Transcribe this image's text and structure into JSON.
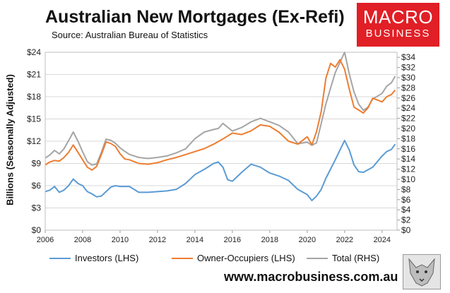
{
  "header": {
    "title": "Australian New Mortgages (Ex-Refi)",
    "subtitle": "Source: Australian Bureau of Statistics"
  },
  "logo": {
    "line1": "MACRO",
    "line2": "BUSINESS"
  },
  "footer": {
    "website": "www.macrobusiness.com.au"
  },
  "colors": {
    "investors": "#5b9bd5",
    "owner_occupiers": "#ed7d31",
    "total": "#a5a5a5",
    "logo_bg": "#e11f26"
  },
  "chart_data": {
    "type": "line",
    "xlabel": "",
    "ylabel": "Billions (Seasonally Adjusted)",
    "xlim": [
      2006,
      2024.8
    ],
    "x_ticks": [
      "2006",
      "2008",
      "2010",
      "2012",
      "2014",
      "2016",
      "2018",
      "2020",
      "2022",
      "2024"
    ],
    "y_left": {
      "lim": [
        0,
        24
      ],
      "ticks": [
        "$0",
        "$3",
        "$6",
        "$9",
        "$12",
        "$15",
        "$18",
        "$21",
        "$24"
      ]
    },
    "y_right": {
      "lim": [
        0,
        35
      ],
      "ticks": [
        "$0",
        "$2",
        "$4",
        "$6",
        "$8",
        "$10",
        "$12",
        "$14",
        "$16",
        "$18",
        "$20",
        "$22",
        "$24",
        "$26",
        "$28",
        "$30",
        "$32",
        "$34"
      ]
    },
    "grid": true,
    "legend_position": "bottom",
    "series": [
      {
        "name": "Investors (LHS)",
        "axis": "left",
        "x": [
          2006.0,
          2006.25,
          2006.5,
          2006.75,
          2007.0,
          2007.25,
          2007.5,
          2007.75,
          2008.0,
          2008.25,
          2008.5,
          2008.75,
          2009.0,
          2009.25,
          2009.5,
          2009.75,
          2010.0,
          2010.5,
          2011.0,
          2011.5,
          2012.0,
          2012.5,
          2013.0,
          2013.5,
          2014.0,
          2014.5,
          2015.0,
          2015.25,
          2015.5,
          2015.75,
          2016.0,
          2016.5,
          2017.0,
          2017.5,
          2018.0,
          2018.5,
          2019.0,
          2019.5,
          2020.0,
          2020.25,
          2020.5,
          2020.75,
          2021.0,
          2021.5,
          2022.0,
          2022.25,
          2022.5,
          2022.75,
          2023.0,
          2023.5,
          2024.0,
          2024.25,
          2024.5,
          2024.7
        ],
        "values": [
          5.2,
          5.4,
          5.9,
          5.1,
          5.4,
          6.0,
          6.9,
          6.3,
          6.0,
          5.2,
          4.9,
          4.5,
          4.6,
          5.2,
          5.8,
          6.0,
          5.9,
          5.9,
          5.1,
          5.1,
          5.2,
          5.3,
          5.5,
          6.3,
          7.5,
          8.2,
          9.0,
          9.2,
          8.5,
          6.8,
          6.6,
          7.8,
          8.9,
          8.5,
          7.7,
          7.3,
          6.7,
          5.5,
          4.8,
          4.0,
          4.6,
          5.5,
          7.0,
          9.5,
          12.1,
          10.8,
          8.8,
          7.9,
          7.8,
          8.5,
          10.0,
          10.6,
          10.9,
          11.6
        ]
      },
      {
        "name": "Owner-Occupiers (LHS)",
        "axis": "left",
        "x": [
          2006.0,
          2006.25,
          2006.5,
          2006.75,
          2007.0,
          2007.25,
          2007.5,
          2007.75,
          2008.0,
          2008.25,
          2008.5,
          2008.75,
          2009.0,
          2009.25,
          2009.5,
          2009.75,
          2010.0,
          2010.25,
          2010.5,
          2011.0,
          2011.5,
          2012.0,
          2012.5,
          2013.0,
          2013.5,
          2014.0,
          2014.5,
          2015.0,
          2015.5,
          2016.0,
          2016.5,
          2017.0,
          2017.5,
          2018.0,
          2018.5,
          2019.0,
          2019.5,
          2020.0,
          2020.25,
          2020.5,
          2020.75,
          2021.0,
          2021.25,
          2021.5,
          2021.75,
          2022.0,
          2022.25,
          2022.5,
          2022.75,
          2023.0,
          2023.25,
          2023.5,
          2024.0,
          2024.25,
          2024.5,
          2024.7
        ],
        "values": [
          8.8,
          9.2,
          9.4,
          9.3,
          9.8,
          10.5,
          11.5,
          10.5,
          9.5,
          8.5,
          8.1,
          8.6,
          10.2,
          11.9,
          11.7,
          11.3,
          10.3,
          9.6,
          9.5,
          9.0,
          8.9,
          9.1,
          9.5,
          9.8,
          10.2,
          10.6,
          11.0,
          11.6,
          12.3,
          13.1,
          12.9,
          13.4,
          14.2,
          14.0,
          13.2,
          12.0,
          11.6,
          12.6,
          11.5,
          13.3,
          16.0,
          20.5,
          22.5,
          22.0,
          23.0,
          21.7,
          19.0,
          16.6,
          16.2,
          15.8,
          16.5,
          17.8,
          17.3,
          18.0,
          18.3,
          18.9
        ]
      },
      {
        "name": "Total (RHS)",
        "axis": "right",
        "x": [
          2006.0,
          2006.25,
          2006.5,
          2006.75,
          2007.0,
          2007.25,
          2007.5,
          2007.75,
          2008.0,
          2008.25,
          2008.5,
          2008.75,
          2009.0,
          2009.25,
          2009.5,
          2009.75,
          2010.0,
          2010.25,
          2010.5,
          2011.0,
          2011.5,
          2012.0,
          2012.5,
          2013.0,
          2013.5,
          2014.0,
          2014.5,
          2015.0,
          2015.25,
          2015.5,
          2016.0,
          2016.5,
          2017.0,
          2017.5,
          2018.0,
          2018.5,
          2019.0,
          2019.5,
          2020.0,
          2020.25,
          2020.5,
          2020.75,
          2021.0,
          2021.25,
          2021.5,
          2021.75,
          2022.0,
          2022.25,
          2022.5,
          2022.75,
          2023.0,
          2023.25,
          2023.5,
          2024.0,
          2024.25,
          2024.5,
          2024.7
        ],
        "values": [
          14.2,
          14.8,
          15.7,
          15.0,
          16.0,
          17.6,
          19.3,
          17.5,
          15.4,
          13.5,
          12.8,
          13.0,
          15.3,
          17.9,
          17.7,
          17.1,
          16.2,
          15.5,
          14.9,
          14.3,
          14.1,
          14.3,
          14.6,
          15.2,
          16.0,
          18.0,
          19.3,
          19.8,
          20.0,
          21.0,
          19.5,
          20.2,
          21.3,
          22.0,
          21.3,
          20.6,
          19.3,
          17.0,
          17.3,
          16.7,
          17.2,
          21.0,
          24.8,
          28.0,
          31.0,
          33.0,
          35.0,
          30.7,
          27.2,
          24.8,
          23.6,
          24.2,
          25.8,
          26.9,
          28.3,
          29.0,
          30.3
        ]
      }
    ]
  }
}
